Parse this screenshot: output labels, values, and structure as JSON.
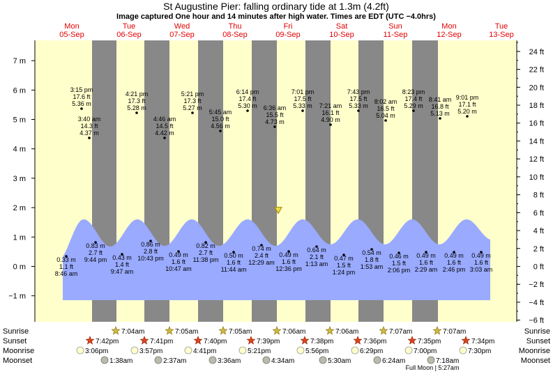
{
  "chart_data": {
    "type": "area",
    "title": "St Augustine Pier: falling  ordinary tide at 1.3m (4.2ft)",
    "subtitle": "Image captured One hour and 14 minutes after high water. Times are EDT (UTC −4.0hrs)",
    "days": [
      {
        "name": "Mon",
        "date": "05-Sep"
      },
      {
        "name": "Tue",
        "date": "06-Sep"
      },
      {
        "name": "Wed",
        "date": "07-Sep"
      },
      {
        "name": "Thu",
        "date": "08-Sep"
      },
      {
        "name": "Fri",
        "date": "09-Sep"
      },
      {
        "name": "Sat",
        "date": "10-Sep"
      },
      {
        "name": "Sun",
        "date": "11-Sep"
      },
      {
        "name": "Mon",
        "date": "12-Sep"
      },
      {
        "name": "Tue",
        "date": "13-Sep"
      }
    ],
    "y_left_ticks": [
      "7 m",
      "6 m",
      "5 m",
      "4 m",
      "3 m",
      "2 m",
      "1 m",
      "0 m",
      "−1 m"
    ],
    "y_right_ticks": [
      "24 ft",
      "22 ft",
      "20 ft",
      "18 ft",
      "16 ft",
      "14 ft",
      "12 ft",
      "10 ft",
      "8 ft",
      "6 ft",
      "4 ft",
      "2 ft",
      "0 ft",
      "−2 ft",
      "−4 ft",
      "−6 ft"
    ],
    "current_level_m": 1.3,
    "labeled_points": [
      {
        "time": "3:15 pm",
        "ft": "17.6 ft",
        "m": "5.36 m",
        "height_m": 5.36
      },
      {
        "time": "3:40 am",
        "ft": "14.3 ft",
        "m": "4.37 m",
        "height_m": 4.37
      },
      {
        "time": "4:21 pm",
        "ft": "17.3 ft",
        "m": "5.28 m",
        "height_m": 5.28
      },
      {
        "time": "4:46 am",
        "ft": "14.5 ft",
        "m": "4.42 m",
        "height_m": 4.42
      },
      {
        "time": "5:21 pm",
        "ft": "17.3 ft",
        "m": "5.27 m",
        "height_m": 5.27
      },
      {
        "time": "5:45 am",
        "ft": "15.0 ft",
        "m": "4.56 m",
        "height_m": 4.56
      },
      {
        "time": "6:14 pm",
        "ft": "17.4 ft",
        "m": "5.30 m",
        "height_m": 5.3
      },
      {
        "time": "6:36 am",
        "ft": "15.5 ft",
        "m": "4.73 m",
        "height_m": 4.73
      },
      {
        "time": "7:01 pm",
        "ft": "17.5 ft",
        "m": "5.33 m",
        "height_m": 5.33
      },
      {
        "time": "7:21 am",
        "ft": "16.1 ft",
        "m": "4.90 m",
        "height_m": 4.9
      },
      {
        "time": "7:43 pm",
        "ft": "17.5 ft",
        "m": "5.33 m",
        "height_m": 5.33
      },
      {
        "time": "8:02 am",
        "ft": "16.5 ft",
        "m": "5.04 m",
        "height_m": 5.04
      },
      {
        "time": "8:23 pm",
        "ft": "17.4 ft",
        "m": "5.29 m",
        "height_m": 5.29
      },
      {
        "time": "8:41 am",
        "ft": "16.8 ft",
        "m": "5.13 m",
        "height_m": 5.13
      },
      {
        "time": "9:01 pm",
        "ft": "17.1 ft",
        "m": "5.20 m",
        "height_m": 5.2
      },
      {
        "time": "8:46 am",
        "ft": "1.1 ft",
        "m": "0.33 m",
        "height_m": 0.33
      },
      {
        "time": "9:44 pm",
        "ft": "2.7 ft",
        "m": "0.83 m",
        "height_m": 0.83
      },
      {
        "time": "9:47 am",
        "ft": "1.4 ft",
        "m": "0.43 m",
        "height_m": 0.43
      },
      {
        "time": "10:43 pm",
        "ft": "2.8 ft",
        "m": "0.86 m",
        "height_m": 0.86
      },
      {
        "time": "10:47 am",
        "ft": "1.6 ft",
        "m": "0.49 m",
        "height_m": 0.49
      },
      {
        "time": "11:38 pm",
        "ft": "2.7 ft",
        "m": "0.82 m",
        "height_m": 0.82
      },
      {
        "time": "11:44 am",
        "ft": "1.6 ft",
        "m": "0.50 m",
        "height_m": 0.5
      },
      {
        "time": "12:29 am",
        "ft": "2.4 ft",
        "m": "0.74 m",
        "height_m": 0.74
      },
      {
        "time": "12:36 pm",
        "ft": "1.6 ft",
        "m": "0.49 m",
        "height_m": 0.49
      },
      {
        "time": "1:13 am",
        "ft": "2.1 ft",
        "m": "0.64 m",
        "height_m": 0.64
      },
      {
        "time": "1:24 pm",
        "ft": "1.5 ft",
        "m": "0.47 m",
        "height_m": 0.47
      },
      {
        "time": "1:53 am",
        "ft": "1.8 ft",
        "m": "0.54 m",
        "height_m": 0.54
      },
      {
        "time": "2:06 pm",
        "ft": "1.5 ft",
        "m": "0.46 m",
        "height_m": 0.46
      },
      {
        "time": "2:29 am",
        "ft": "1.6 ft",
        "m": "0.49 m",
        "height_m": 0.49
      },
      {
        "time": "2:46 pm",
        "ft": "1.6 ft",
        "m": "0.49 m",
        "height_m": 0.49
      },
      {
        "time": "3:03 am",
        "ft": "1.6 ft",
        "m": "0.49 m",
        "height_m": 0.49
      }
    ],
    "rows": {
      "sunrise": {
        "label": "Sunrise",
        "times": [
          "7:04am",
          "7:05am",
          "7:05am",
          "7:06am",
          "7:06am",
          "7:07am",
          "7:07am"
        ]
      },
      "sunset": {
        "label": "Sunset",
        "times": [
          "7:42pm",
          "7:41pm",
          "7:40pm",
          "7:39pm",
          "7:38pm",
          "7:36pm",
          "7:35pm",
          "7:34pm"
        ]
      },
      "moonrise": {
        "label": "Moonrise",
        "times": [
          "3:06pm",
          "3:57pm",
          "4:41pm",
          "5:21pm",
          "5:56pm",
          "6:29pm",
          "7:00pm",
          "7:30pm"
        ]
      },
      "moonset": {
        "label": "Moonset",
        "times": [
          "1:38am",
          "2:37am",
          "3:36am",
          "4:34am",
          "5:30am",
          "6:24am",
          "7:18am"
        ]
      }
    },
    "moon_note": "Full Moon | 5:27am",
    "colors": {
      "day": "#ffffcc",
      "night": "#888888",
      "water": "#99aaff",
      "day_label": "#e00000",
      "marker": "#eedd44",
      "sun": "#dd4422",
      "moon_rise": "#ffffcc",
      "moon_set": "#bbbbaa"
    }
  }
}
